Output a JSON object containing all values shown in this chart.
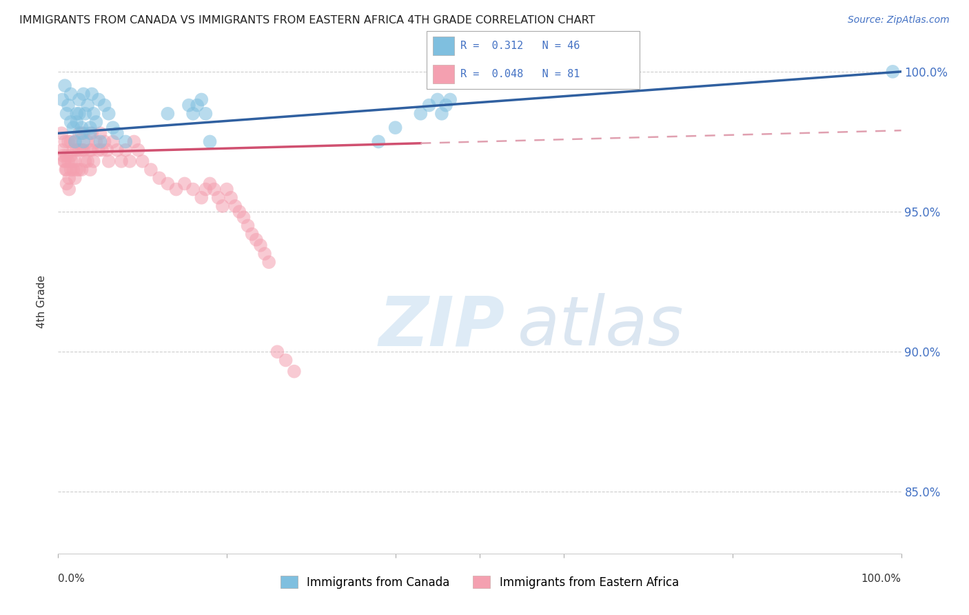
{
  "title": "IMMIGRANTS FROM CANADA VS IMMIGRANTS FROM EASTERN AFRICA 4TH GRADE CORRELATION CHART",
  "source": "Source: ZipAtlas.com",
  "ylabel": "4th Grade",
  "xlim": [
    0.0,
    1.0
  ],
  "ylim": [
    0.828,
    1.008
  ],
  "ytick_vals": [
    1.0,
    0.95,
    0.9,
    0.85
  ],
  "ytick_labels": [
    "100.0%",
    "95.0%",
    "90.0%",
    "85.0%"
  ],
  "legend_canada": "Immigrants from Canada",
  "legend_africa": "Immigrants from Eastern Africa",
  "R_canada": 0.312,
  "N_canada": 46,
  "R_africa": 0.048,
  "N_africa": 81,
  "color_canada": "#7fbfdf",
  "color_africa": "#f4a0b0",
  "trendline_canada_color": "#3060a0",
  "trendline_africa_solid_color": "#d05070",
  "trendline_africa_dashed_color": "#e0a0b0",
  "background_color": "#ffffff",
  "watermark_zip": "ZIP",
  "watermark_atlas": "atlas",
  "canada_x": [
    0.005,
    0.008,
    0.01,
    0.012,
    0.015,
    0.015,
    0.018,
    0.02,
    0.022,
    0.022,
    0.025,
    0.025,
    0.028,
    0.028,
    0.03,
    0.03,
    0.032,
    0.035,
    0.038,
    0.038,
    0.04,
    0.042,
    0.045,
    0.048,
    0.05,
    0.055,
    0.06,
    0.065,
    0.07,
    0.08,
    0.13,
    0.155,
    0.16,
    0.165,
    0.17,
    0.175,
    0.18,
    0.38,
    0.4,
    0.43,
    0.44,
    0.45,
    0.455,
    0.46,
    0.465,
    0.99
  ],
  "canada_y": [
    0.99,
    0.995,
    0.985,
    0.988,
    0.992,
    0.982,
    0.98,
    0.975,
    0.985,
    0.982,
    0.99,
    0.985,
    0.98,
    0.978,
    0.992,
    0.975,
    0.985,
    0.988,
    0.98,
    0.978,
    0.992,
    0.985,
    0.982,
    0.99,
    0.975,
    0.988,
    0.985,
    0.98,
    0.978,
    0.975,
    0.985,
    0.988,
    0.985,
    0.988,
    0.99,
    0.985,
    0.975,
    0.975,
    0.98,
    0.985,
    0.988,
    0.99,
    0.985,
    0.988,
    0.99,
    1.0
  ],
  "africa_x": [
    0.004,
    0.005,
    0.006,
    0.007,
    0.008,
    0.008,
    0.009,
    0.01,
    0.01,
    0.01,
    0.012,
    0.012,
    0.013,
    0.013,
    0.015,
    0.015,
    0.015,
    0.016,
    0.018,
    0.018,
    0.02,
    0.02,
    0.02,
    0.022,
    0.022,
    0.025,
    0.025,
    0.025,
    0.028,
    0.028,
    0.03,
    0.03,
    0.032,
    0.035,
    0.035,
    0.038,
    0.038,
    0.04,
    0.04,
    0.042,
    0.045,
    0.048,
    0.05,
    0.052,
    0.055,
    0.058,
    0.06,
    0.065,
    0.07,
    0.075,
    0.08,
    0.085,
    0.09,
    0.095,
    0.1,
    0.11,
    0.12,
    0.13,
    0.14,
    0.15,
    0.16,
    0.17,
    0.175,
    0.18,
    0.185,
    0.19,
    0.195,
    0.2,
    0.205,
    0.21,
    0.215,
    0.22,
    0.225,
    0.23,
    0.235,
    0.24,
    0.245,
    0.25,
    0.26,
    0.27,
    0.28
  ],
  "africa_y": [
    0.978,
    0.972,
    0.97,
    0.968,
    0.975,
    0.968,
    0.965,
    0.97,
    0.965,
    0.96,
    0.975,
    0.968,
    0.962,
    0.958,
    0.975,
    0.97,
    0.965,
    0.968,
    0.972,
    0.965,
    0.975,
    0.968,
    0.962,
    0.972,
    0.965,
    0.978,
    0.972,
    0.965,
    0.972,
    0.965,
    0.978,
    0.972,
    0.968,
    0.975,
    0.968,
    0.972,
    0.965,
    0.978,
    0.972,
    0.968,
    0.975,
    0.972,
    0.978,
    0.972,
    0.975,
    0.972,
    0.968,
    0.975,
    0.972,
    0.968,
    0.972,
    0.968,
    0.975,
    0.972,
    0.968,
    0.965,
    0.962,
    0.96,
    0.958,
    0.96,
    0.958,
    0.955,
    0.958,
    0.96,
    0.958,
    0.955,
    0.952,
    0.958,
    0.955,
    0.952,
    0.95,
    0.948,
    0.945,
    0.942,
    0.94,
    0.938,
    0.935,
    0.932,
    0.9,
    0.897,
    0.893
  ]
}
